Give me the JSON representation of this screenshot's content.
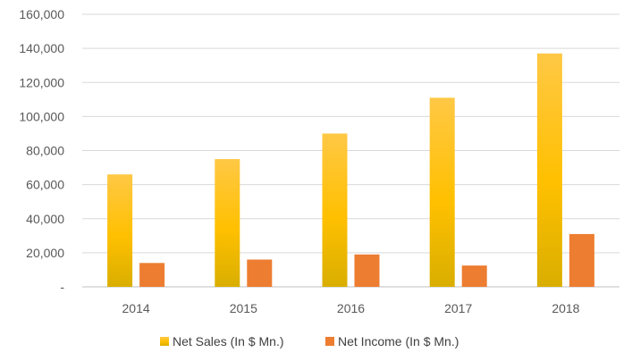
{
  "chart_data": {
    "type": "bar",
    "categories": [
      "2014",
      "2015",
      "2016",
      "2017",
      "2018"
    ],
    "series": [
      {
        "name": "Net Sales (In $ Mn.)",
        "values": [
          66000,
          75000,
          90000,
          111000,
          137000
        ],
        "color": "#FFC000"
      },
      {
        "name": "Net Income (In $ Mn.)",
        "values": [
          14000,
          16000,
          19000,
          12500,
          31000
        ],
        "color": "#ED7D31"
      }
    ],
    "ylim": [
      0,
      160000
    ],
    "yticks": [
      0,
      20000,
      40000,
      60000,
      80000,
      100000,
      120000,
      140000,
      160000
    ],
    "ytick_labels": [
      "-",
      "20,000",
      "40,000",
      "60,000",
      "80,000",
      "100,000",
      "120,000",
      "140,000",
      "160,000"
    ],
    "grid": true,
    "legend_position": "bottom"
  }
}
